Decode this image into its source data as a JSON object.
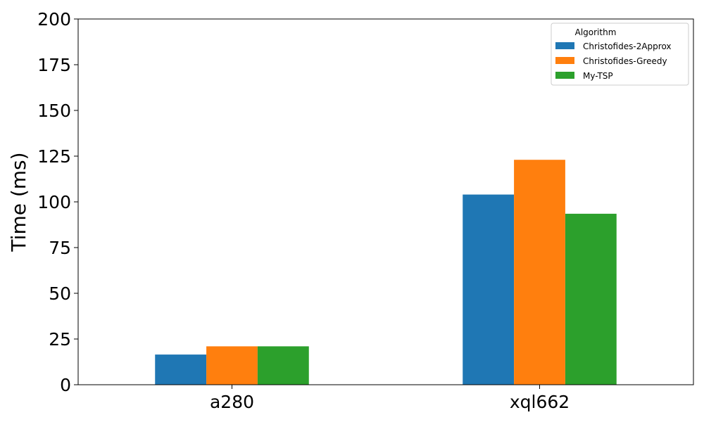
{
  "chart_data": {
    "type": "bar",
    "categories": [
      "a280",
      "xql662"
    ],
    "series": [
      {
        "name": "Christofides-2Approx",
        "values": [
          16.5,
          104
        ],
        "color": "#1f77b4"
      },
      {
        "name": "Christofides-Greedy",
        "values": [
          21,
          123
        ],
        "color": "#ff7f0e"
      },
      {
        "name": "My-TSP",
        "values": [
          21,
          93.5
        ],
        "color": "#2ca02c"
      }
    ],
    "title": "",
    "xlabel": "",
    "ylabel": "Time (ms)",
    "ylim": [
      0,
      200
    ],
    "yticks": [
      0,
      25,
      50,
      75,
      100,
      125,
      150,
      175,
      200
    ],
    "grid": false,
    "legend": {
      "title": "Algorithm",
      "placement": "top-right"
    }
  }
}
